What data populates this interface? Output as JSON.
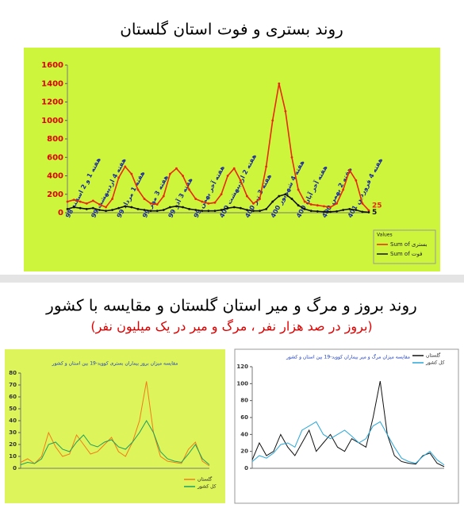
{
  "headings": {
    "top": "روند بستری و فوت استان گلستان",
    "section": "روند بروز و مرگ و میر استان گلستان و مقایسه با کشور",
    "subtitle": "(بروز در صد هزار نفر ، مرگ و میر در یک میلیون نفر)"
  },
  "chart_data": [
    {
      "type": "line",
      "legend_title": "Values",
      "categories": [
        "هفته 1 و 2 اسفند 98",
        null,
        null,
        null,
        "هفته 4 اردیبهشت 99",
        null,
        null,
        null,
        "هفته 1 مرداد 99",
        null,
        null,
        null,
        "هفته 3 مهر 99",
        null,
        null,
        null,
        "هفته 3 آذر 99",
        null,
        null,
        null,
        "هفته آخر بهمن 99",
        null,
        null,
        null,
        "هفته 2 اردیبهشت 400",
        null,
        null,
        null,
        "هفته 3 تیر 400",
        null,
        null,
        null,
        "هفته 4 شهریور 400",
        null,
        null,
        null,
        "هفته آخر آبان 400",
        null,
        null,
        null,
        "هفته 2 بهمن 400",
        null,
        null,
        null,
        "هفته 4 فروردین 401",
        null,
        null,
        null
      ],
      "series": [
        {
          "name": "Sum of بستری",
          "color": "#e8280c",
          "values": [
            120,
            140,
            120,
            100,
            130,
            90,
            60,
            150,
            380,
            500,
            420,
            250,
            150,
            100,
            90,
            180,
            420,
            480,
            400,
            250,
            150,
            120,
            100,
            110,
            200,
            400,
            480,
            350,
            180,
            100,
            150,
            500,
            1000,
            1400,
            1100,
            600,
            250,
            120,
            90,
            80,
            70,
            60,
            100,
            250,
            460,
            350,
            100,
            25
          ]
        },
        {
          "name": "Sum of فوت",
          "color": "#111111",
          "values": [
            40,
            60,
            50,
            40,
            50,
            30,
            20,
            30,
            50,
            70,
            60,
            40,
            30,
            20,
            20,
            30,
            60,
            70,
            60,
            40,
            30,
            20,
            20,
            20,
            30,
            50,
            60,
            50,
            30,
            20,
            20,
            40,
            120,
            180,
            200,
            150,
            80,
            40,
            20,
            15,
            10,
            10,
            15,
            30,
            40,
            30,
            10,
            5
          ]
        }
      ],
      "ylim": [
        0,
        1600
      ],
      "yticks": [
        0,
        200,
        400,
        600,
        800,
        1000,
        1200,
        1400,
        1600
      ],
      "background": "#ccf53c"
    },
    {
      "type": "line",
      "title": "مقایسه میزان بروز بیماران بستری کووید-19 بین استان و کشور",
      "categories": [
        null,
        null,
        null,
        null,
        null,
        null,
        null,
        null,
        null,
        null,
        null,
        null,
        null,
        null,
        null,
        null,
        null,
        null,
        null,
        null,
        null,
        null,
        null,
        null,
        null,
        null,
        null,
        null
      ],
      "series": [
        {
          "name": "گلستان",
          "color": "#f07c1a",
          "values": [
            5,
            8,
            4,
            10,
            30,
            18,
            10,
            12,
            28,
            20,
            12,
            14,
            20,
            26,
            14,
            10,
            22,
            40,
            73,
            30,
            10,
            6,
            5,
            4,
            16,
            22,
            6,
            2
          ]
        },
        {
          "name": "کل کشور",
          "color": "#1e9e60",
          "values": [
            3,
            5,
            4,
            8,
            20,
            22,
            16,
            14,
            22,
            28,
            20,
            18,
            22,
            24,
            18,
            16,
            22,
            30,
            40,
            30,
            14,
            8,
            6,
            5,
            12,
            20,
            8,
            3
          ]
        }
      ],
      "ylim": [
        0,
        80
      ],
      "yticks": [
        0,
        10,
        20,
        30,
        40,
        50,
        60,
        70,
        80
      ],
      "background": "#ddf55a"
    },
    {
      "type": "line",
      "title": "مقایسه میزان مرگ و میر بیماران کووید-19 بین استان و کشور",
      "categories": [
        null,
        null,
        null,
        null,
        null,
        null,
        null,
        null,
        null,
        null,
        null,
        null,
        null,
        null,
        null,
        null,
        null,
        null,
        null,
        null,
        null,
        null,
        null,
        null,
        null,
        null,
        null,
        null
      ],
      "series": [
        {
          "name": "گلستان",
          "color": "#111111",
          "values": [
            10,
            30,
            15,
            20,
            40,
            25,
            15,
            30,
            45,
            20,
            30,
            40,
            25,
            20,
            35,
            30,
            25,
            60,
            103,
            40,
            15,
            8,
            6,
            5,
            15,
            18,
            6,
            2
          ]
        },
        {
          "name": "کل کشور",
          "color": "#2aa7d8",
          "values": [
            8,
            15,
            12,
            18,
            28,
            30,
            25,
            45,
            50,
            55,
            40,
            35,
            40,
            45,
            38,
            30,
            35,
            50,
            55,
            40,
            25,
            12,
            8,
            6,
            14,
            20,
            10,
            4
          ]
        }
      ],
      "ylim": [
        0,
        120
      ],
      "yticks": [
        0,
        20,
        40,
        60,
        80,
        100,
        120
      ],
      "background": "#ffffff"
    }
  ]
}
